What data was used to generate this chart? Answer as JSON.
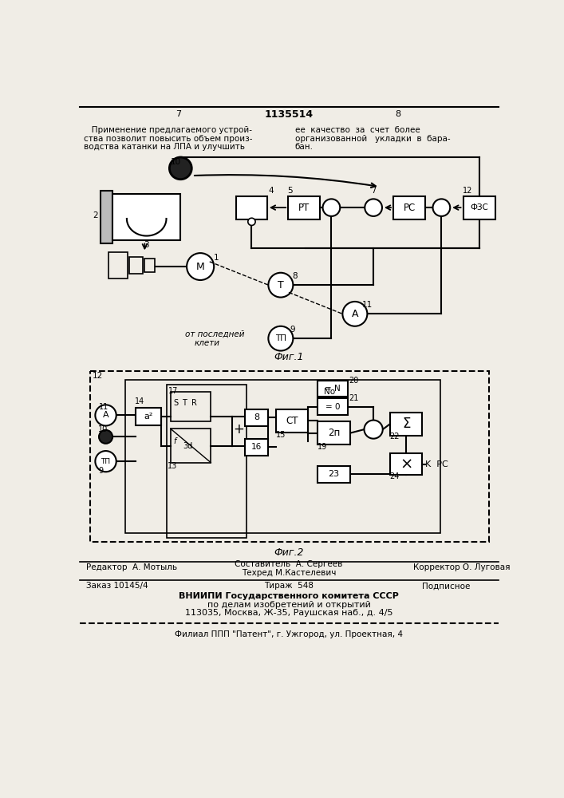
{
  "page_width": 7.07,
  "page_height": 10.0,
  "bg_color": "#f0ede6",
  "text_left_col": [
    "   Применение предлагаемого устрой-",
    "ства позволит повысить объем произ-",
    "водства катанки на ЛПА и улучшить"
  ],
  "text_right_col": [
    "ее  качество  за  счет  более",
    "организованной   укладки  в  бара-",
    "бан."
  ],
  "page_number_left": "7",
  "page_number_center": "1135514",
  "page_number_right": "8",
  "fig1_label": "Фиг.1",
  "fig2_label": "Фиг.2",
  "footer_editor": "Редактор  А. Мотыль",
  "footer_composer": "Составитель  А. Сергеев",
  "footer_corrector": "Корректор О. Луговая",
  "footer_techred": "Техред М.Кастелевич",
  "footer_order": "Заказ 10145/4",
  "footer_circulation": "Тираж  548",
  "footer_subscription": "Подписное",
  "footer_vniip1": "ВНИИПИ Государственного комитета СССР",
  "footer_vniip2": "по делам изобретений и открытий",
  "footer_vniip3": "113035, Москва, Ж-35, Раушская наб., д. 4/5",
  "footer_branch": "Филиал ППП \"Патент\", г. Ужгород, ул. Проектная, 4"
}
